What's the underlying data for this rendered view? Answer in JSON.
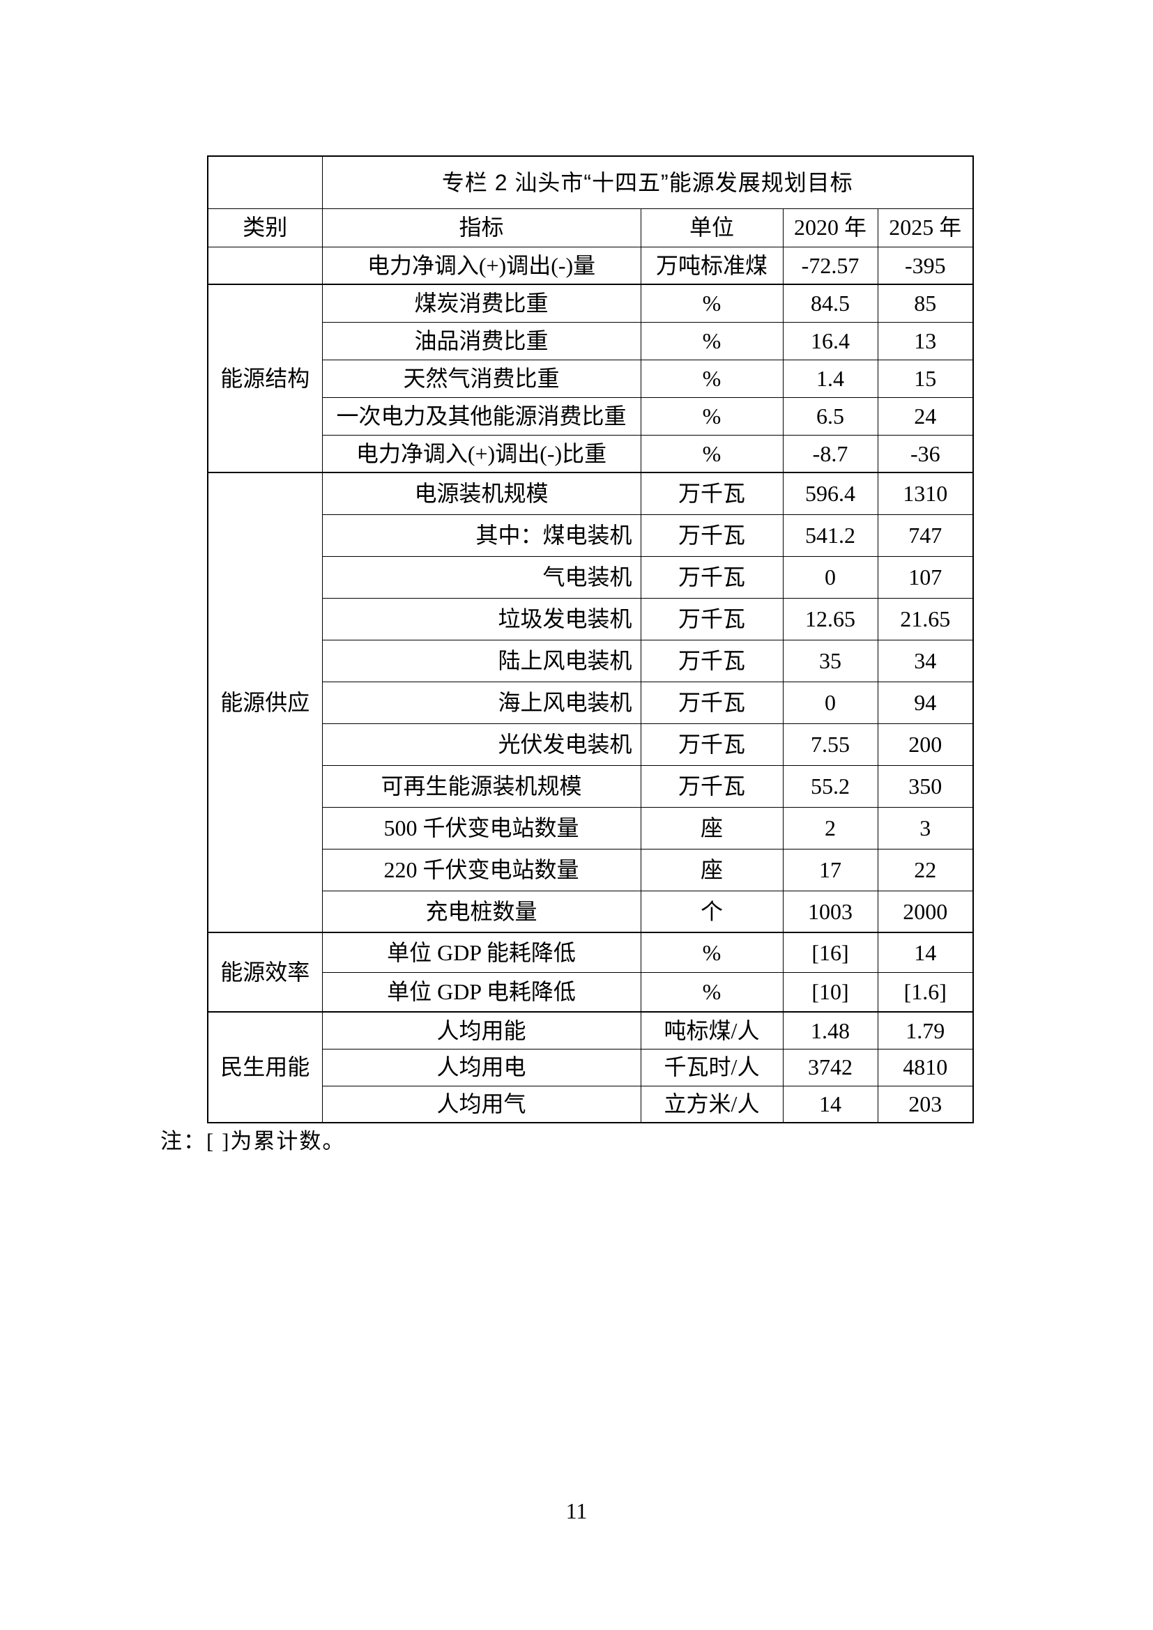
{
  "page": {
    "note": "注：[ ]为累计数。",
    "page_number": "11"
  },
  "table": {
    "title": "专栏 2  汕头市“十四五”能源发展规划目标",
    "headers": {
      "category": "类别",
      "indicator": "指标",
      "unit": "单位",
      "y2020": "2020 年",
      "y2025": "2025 年"
    },
    "rows": [
      {
        "category": {
          "label": "",
          "rowspan": 1
        },
        "indicator": "电力净调入(+)调出(-)量",
        "align": "left",
        "unit": "万吨标准煤",
        "v2020": "-72.57",
        "v2025": "-395"
      },
      {
        "category": {
          "label": "能源结构",
          "rowspan": 5
        },
        "indicator": "煤炭消费比重",
        "align": "left",
        "unit": "%",
        "v2020": "84.5",
        "v2025": "85"
      },
      {
        "indicator": "油品消费比重",
        "align": "left",
        "unit": "%",
        "v2020": "16.4",
        "v2025": "13"
      },
      {
        "indicator": "天然气消费比重",
        "align": "left",
        "unit": "%",
        "v2020": "1.4",
        "v2025": "15"
      },
      {
        "indicator": "一次电力及其他能源消费比重",
        "align": "left",
        "unit": "%",
        "v2020": "6.5",
        "v2025": "24"
      },
      {
        "indicator": "电力净调入(+)调出(-)比重",
        "align": "left",
        "unit": "%",
        "v2020": "-8.7",
        "v2025": "-36"
      },
      {
        "category": {
          "label": "能源供应",
          "rowspan": 11
        },
        "indicator": "电源装机规模",
        "align": "left",
        "unit": "万千瓦",
        "v2020": "596.4",
        "v2025": "1310"
      },
      {
        "indicator": "其中：煤电装机",
        "align": "right",
        "unit": "万千瓦",
        "v2020": "541.2",
        "v2025": "747"
      },
      {
        "indicator": "气电装机",
        "align": "right",
        "unit": "万千瓦",
        "v2020": "0",
        "v2025": "107"
      },
      {
        "indicator": "垃圾发电装机",
        "align": "right",
        "unit": "万千瓦",
        "v2020": "12.65",
        "v2025": "21.65"
      },
      {
        "indicator": "陆上风电装机",
        "align": "right",
        "unit": "万千瓦",
        "v2020": "35",
        "v2025": "34"
      },
      {
        "indicator": "海上风电装机",
        "align": "right",
        "unit": "万千瓦",
        "v2020": "0",
        "v2025": "94"
      },
      {
        "indicator": "光伏发电装机",
        "align": "right",
        "unit": "万千瓦",
        "v2020": "7.55",
        "v2025": "200"
      },
      {
        "indicator": "可再生能源装机规模",
        "align": "left",
        "unit": "万千瓦",
        "v2020": "55.2",
        "v2025": "350"
      },
      {
        "indicator": "500 千伏变电站数量",
        "align": "left",
        "unit": "座",
        "v2020": "2",
        "v2025": "3"
      },
      {
        "indicator": "220 千伏变电站数量",
        "align": "left",
        "unit": "座",
        "v2020": "17",
        "v2025": "22"
      },
      {
        "indicator": "充电桩数量",
        "align": "left",
        "unit": "个",
        "v2020": "1003",
        "v2025": "2000"
      },
      {
        "category": {
          "label": "能源效率",
          "rowspan": 2
        },
        "indicator": "单位 GDP 能耗降低",
        "align": "left",
        "unit": "%",
        "v2020": "[16]",
        "v2025": "14"
      },
      {
        "indicator": "单位 GDP 电耗降低",
        "align": "left",
        "unit": "%",
        "v2020": "[10]",
        "v2025": "[1.6]"
      },
      {
        "category": {
          "label": "民生用能",
          "rowspan": 3
        },
        "indicator": "人均用能",
        "align": "left",
        "unit": "吨标煤/人",
        "v2020": "1.48",
        "v2025": "1.79"
      },
      {
        "indicator": "人均用电",
        "align": "left",
        "unit": "千瓦时/人",
        "v2020": "3742",
        "v2025": "4810"
      },
      {
        "indicator": "人均用气",
        "align": "left",
        "unit": "立方米/人",
        "v2020": "14",
        "v2025": "203"
      }
    ]
  }
}
